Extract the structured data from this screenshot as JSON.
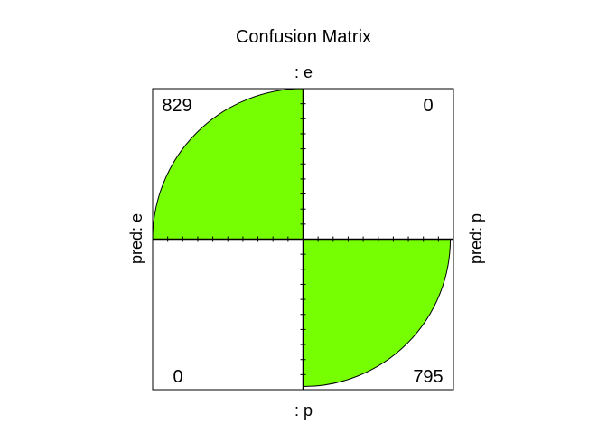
{
  "chart_data": {
    "type": "fourfold",
    "title": "Confusion Matrix",
    "top_label": ": e",
    "bottom_label": ": p",
    "left_label": "pred: e",
    "right_label": "pred: p",
    "fill_color": "#76FF03",
    "cells": [
      {
        "quadrant": "top-left",
        "value": 829,
        "label": "829"
      },
      {
        "quadrant": "top-right",
        "value": 0,
        "label": "0"
      },
      {
        "quadrant": "bottom-left",
        "value": 0,
        "label": "0"
      },
      {
        "quadrant": "bottom-right",
        "value": 795,
        "label": "795"
      }
    ]
  }
}
